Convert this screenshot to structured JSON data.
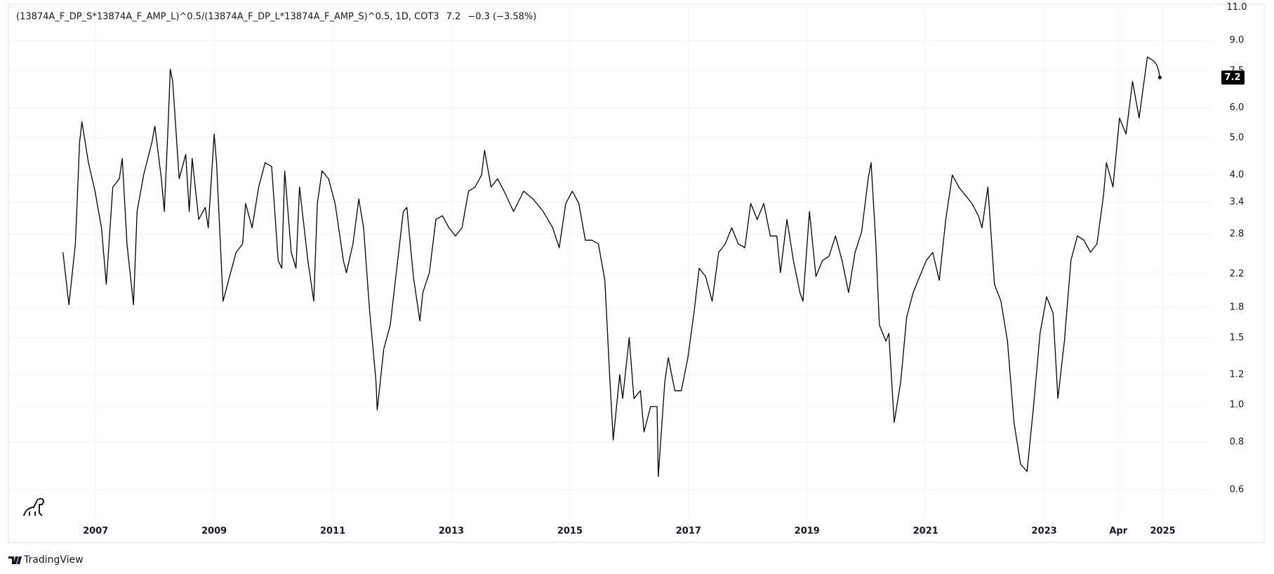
{
  "chart_data": {
    "type": "line",
    "title": "(13874A_F_DP_S*13874A_F_AMP_L)^0.5/(13874A_F_DP_L*13874A_F_AMP_S)^0.5, 1D, COT3",
    "last_value_label": "7.2",
    "change_label": "−0.3 (−3.58%)",
    "branding": "TradingView",
    "color": "#000000",
    "log_scale": true,
    "grid": true,
    "xlim": [
      2005.53,
      2025.81
    ],
    "ylim": [
      0.5,
      11.2
    ],
    "xticks": [
      2007,
      2009,
      2011,
      2013,
      2015,
      2017,
      2019,
      2021,
      2023,
      {
        "value": 2024.25,
        "label": "Apr"
      },
      2025
    ],
    "yticks": [
      0.6,
      0.8,
      {
        "value": 1,
        "label": "1.0"
      },
      1.2,
      1.5,
      1.8,
      2.2,
      2.8,
      3.4,
      {
        "value": 4,
        "label": "4.0"
      },
      {
        "value": 5,
        "label": "5.0"
      },
      {
        "value": 6,
        "label": "6.0"
      },
      7.5,
      {
        "value": 9,
        "label": "9.0"
      },
      {
        "value": 11,
        "label": "11.0"
      }
    ],
    "x": [
      2006.45,
      2006.55,
      2006.66,
      2006.73,
      2006.77,
      2006.88,
      2006.99,
      2007.1,
      2007.18,
      2007.29,
      2007.4,
      2007.45,
      2007.53,
      2007.64,
      2007.7,
      2007.81,
      2007.95,
      2008.0,
      2008.11,
      2008.16,
      2008.22,
      2008.26,
      2008.3,
      2008.41,
      2008.52,
      2008.58,
      2008.63,
      2008.74,
      2008.85,
      2008.9,
      2009.0,
      2009.04,
      2009.15,
      2009.26,
      2009.37,
      2009.48,
      2009.53,
      2009.64,
      2009.75,
      2009.86,
      2009.97,
      2010.08,
      2010.14,
      2010.19,
      2010.3,
      2010.38,
      2010.44,
      2010.58,
      2010.68,
      2010.74,
      2010.82,
      2010.93,
      2011.04,
      2011.18,
      2011.23,
      2011.34,
      2011.44,
      2011.52,
      2011.62,
      2011.73,
      2011.75,
      2011.86,
      2011.97,
      2012.08,
      2012.19,
      2012.25,
      2012.36,
      2012.47,
      2012.52,
      2012.63,
      2012.74,
      2012.85,
      2012.96,
      2013.07,
      2013.18,
      2013.29,
      2013.4,
      2013.51,
      2013.56,
      2013.67,
      2013.78,
      2013.89,
      2014.05,
      2014.22,
      2014.38,
      2014.55,
      2014.71,
      2014.82,
      2014.93,
      2015.04,
      2015.15,
      2015.26,
      2015.37,
      2015.48,
      2015.59,
      2015.67,
      2015.73,
      2015.84,
      2015.89,
      2016.0,
      2016.08,
      2016.19,
      2016.25,
      2016.36,
      2016.47,
      2016.49,
      2016.6,
      2016.66,
      2016.77,
      2016.88,
      2016.99,
      2017.1,
      2017.18,
      2017.29,
      2017.4,
      2017.51,
      2017.62,
      2017.73,
      2017.84,
      2017.95,
      2018.05,
      2018.16,
      2018.27,
      2018.38,
      2018.49,
      2018.55,
      2018.66,
      2018.77,
      2018.88,
      2018.93,
      2019.04,
      2019.15,
      2019.26,
      2019.37,
      2019.48,
      2019.59,
      2019.7,
      2019.81,
      2019.92,
      2020.03,
      2020.08,
      2020.16,
      2020.22,
      2020.33,
      2020.38,
      2020.47,
      2020.58,
      2020.68,
      2020.79,
      2020.9,
      2021.01,
      2021.12,
      2021.23,
      2021.34,
      2021.45,
      2021.56,
      2021.67,
      2021.78,
      2021.89,
      2021.95,
      2022.05,
      2022.16,
      2022.27,
      2022.38,
      2022.49,
      2022.6,
      2022.71,
      2022.82,
      2022.93,
      2023.04,
      2023.15,
      2023.23,
      2023.34,
      2023.45,
      2023.56,
      2023.67,
      2023.78,
      2023.89,
      2024.0,
      2024.05,
      2024.16,
      2024.27,
      2024.38,
      2024.49,
      2024.6,
      2024.74,
      2024.85,
      2024.9,
      2024.93,
      2024.95
    ],
    "values": [
      2.51,
      1.83,
      2.64,
      4.87,
      5.51,
      4.31,
      3.63,
      2.91,
      2.07,
      3.72,
      3.91,
      4.42,
      2.64,
      1.83,
      3.21,
      4.0,
      4.87,
      5.37,
      3.91,
      3.21,
      5.24,
      7.57,
      7.04,
      3.91,
      4.53,
      3.21,
      4.42,
      3.06,
      3.29,
      2.91,
      5.12,
      4.31,
      1.87,
      2.17,
      2.51,
      2.64,
      3.37,
      2.91,
      3.72,
      4.31,
      4.21,
      2.39,
      2.28,
      4.1,
      2.51,
      2.28,
      3.72,
      2.39,
      1.87,
      3.37,
      4.1,
      3.91,
      3.37,
      2.39,
      2.22,
      2.64,
      3.46,
      2.91,
      1.78,
      1.15,
      0.97,
      1.4,
      1.62,
      2.28,
      3.21,
      3.29,
      2.17,
      1.66,
      1.97,
      2.22,
      3.06,
      3.13,
      2.91,
      2.77,
      2.91,
      3.63,
      3.72,
      4.0,
      4.64,
      3.72,
      3.91,
      3.63,
      3.21,
      3.63,
      3.46,
      3.21,
      2.91,
      2.58,
      3.37,
      3.63,
      3.37,
      2.7,
      2.7,
      2.64,
      2.12,
      1.2,
      0.81,
      1.2,
      1.04,
      1.5,
      1.04,
      1.09,
      0.85,
      0.99,
      0.99,
      0.65,
      1.15,
      1.33,
      1.09,
      1.09,
      1.33,
      1.78,
      2.28,
      2.17,
      1.87,
      2.51,
      2.64,
      2.91,
      2.64,
      2.58,
      3.37,
      3.06,
      3.37,
      2.77,
      2.77,
      2.22,
      3.06,
      2.39,
      1.97,
      1.87,
      3.21,
      2.17,
      2.39,
      2.45,
      2.77,
      2.39,
      1.97,
      2.51,
      2.84,
      3.91,
      4.31,
      2.64,
      1.62,
      1.47,
      1.54,
      0.9,
      1.15,
      1.7,
      1.97,
      2.17,
      2.39,
      2.51,
      2.12,
      3.06,
      4.0,
      3.72,
      3.54,
      3.37,
      3.13,
      2.91,
      3.72,
      2.07,
      1.87,
      1.47,
      0.9,
      0.7,
      0.67,
      0.99,
      1.54,
      1.92,
      1.74,
      1.04,
      1.47,
      2.39,
      2.77,
      2.7,
      2.51,
      2.64,
      3.54,
      4.31,
      3.72,
      5.64,
      5.12,
      7.04,
      5.64,
      8.15,
      7.95,
      7.76,
      7.5,
      7.2
    ]
  }
}
